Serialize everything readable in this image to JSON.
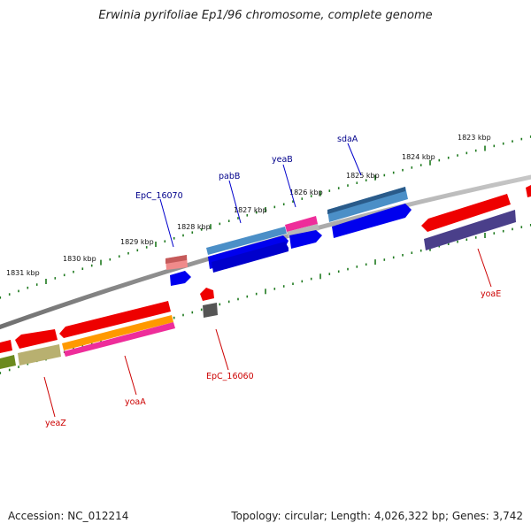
{
  "title": "Erwinia pyrifoliae Ep1/96 chromosome, complete genome",
  "footer": {
    "accession": "Accession: NC_012214",
    "summary": "Topology: circular; Length: 4,026,322 bp; Genes: 3,742"
  },
  "colors": {
    "backbone": "#808080",
    "tick": "#1f7a1f",
    "label_forward": "#00008b",
    "label_reverse": "#cc0000"
  },
  "scale_labels": [
    "1831 kbp",
    "1830 kbp",
    "1829 kbp",
    "1828 kbp",
    "1827 kbp",
    "1826 kbp",
    "1825 kbp",
    "1824 kbp",
    "1823 kbp"
  ],
  "gene_labels": [
    {
      "text": "EpC_16070",
      "strand": "forward"
    },
    {
      "text": "pabB",
      "strand": "forward"
    },
    {
      "text": "yeaB",
      "strand": "forward"
    },
    {
      "text": "sdaA",
      "strand": "forward"
    },
    {
      "text": "yoaE",
      "strand": "reverse"
    },
    {
      "text": "EpC_16060",
      "strand": "reverse"
    },
    {
      "text": "yoaA",
      "strand": "reverse"
    },
    {
      "text": "yeaZ",
      "strand": "reverse"
    }
  ]
}
